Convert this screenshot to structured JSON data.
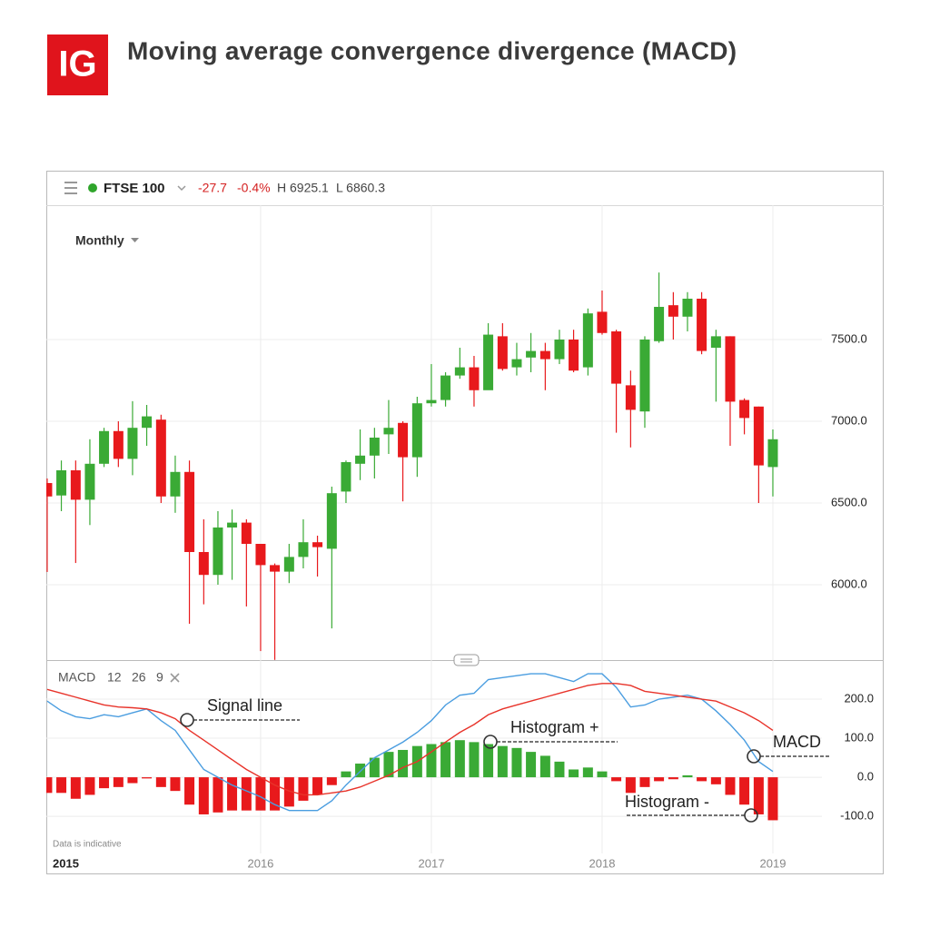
{
  "logo": "IG",
  "title": "Moving average convergence divergence (MACD)",
  "header": {
    "symbol": "FTSE 100",
    "change": "-27.7",
    "change_pct": "-0.4%",
    "high": "H 6925.1",
    "low": "L 6860.3"
  },
  "interval": "Monthly",
  "footnote": "Data is indicative",
  "chart_data": [
    {
      "type": "candlestick",
      "x": [
        2014.75,
        2014.833,
        2014.917,
        2015,
        2015.083,
        2015.167,
        2015.25,
        2015.333,
        2015.417,
        2015.5,
        2015.583,
        2015.667,
        2015.75,
        2015.833,
        2015.917,
        2016,
        2016.083,
        2016.167,
        2016.25,
        2016.333,
        2016.417,
        2016.5,
        2016.583,
        2016.667,
        2016.75,
        2016.833,
        2016.917,
        2017,
        2017.083,
        2017.167,
        2017.25,
        2017.333,
        2017.417,
        2017.5,
        2017.583,
        2017.667,
        2017.75,
        2017.833,
        2017.917,
        2018,
        2018.083,
        2018.167,
        2018.25,
        2018.333,
        2018.417,
        2018.5,
        2018.583,
        2018.667,
        2018.75,
        2018.833,
        2018.917,
        2019
      ],
      "open": [
        6622,
        6546,
        6700,
        6520,
        6740,
        6940,
        6770,
        6960,
        7010,
        6540,
        6690,
        6200,
        6060,
        6350,
        6380,
        6250,
        6120,
        6080,
        6170,
        6260,
        6220,
        6570,
        6740,
        6790,
        6920,
        6990,
        6780,
        7110,
        7130,
        7280,
        7330,
        7190,
        7520,
        7330,
        7390,
        7430,
        7380,
        7500,
        7330,
        7670,
        7550,
        7220,
        7060,
        7490,
        7710,
        7640,
        7750,
        7450,
        7520,
        7130,
        7090,
        6720
      ],
      "high": [
        6650,
        6760,
        6760,
        6890,
        6960,
        7000,
        7123,
        7100,
        7040,
        6790,
        6760,
        6400,
        6450,
        6460,
        6400,
        6250,
        6130,
        6250,
        6400,
        6300,
        6600,
        6760,
        6950,
        6960,
        7130,
        7000,
        7150,
        7350,
        7300,
        7450,
        7400,
        7600,
        7600,
        7480,
        7540,
        7480,
        7560,
        7560,
        7690,
        7800,
        7560,
        7310,
        7520,
        7910,
        7790,
        7790,
        7790,
        7560,
        7520,
        7140,
        7090,
        6950
      ],
      "low": [
        6078,
        6450,
        6133,
        6365,
        6720,
        6720,
        6670,
        6850,
        6500,
        6440,
        5761,
        5880,
        6000,
        6030,
        5867,
        5594,
        5540,
        6010,
        6100,
        6050,
        5733,
        6500,
        6640,
        6650,
        6800,
        6510,
        6660,
        7090,
        7090,
        7260,
        7090,
        7200,
        7310,
        7280,
        7300,
        7190,
        7350,
        7300,
        7280,
        7530,
        6930,
        6840,
        6960,
        7480,
        7500,
        7550,
        7410,
        7120,
        6850,
        6920,
        6500,
        6540
      ],
      "close": [
        6540,
        6700,
        6520,
        6740,
        6940,
        6770,
        6960,
        7030,
        6540,
        6690,
        6200,
        6060,
        6350,
        6380,
        6250,
        6120,
        6080,
        6170,
        6260,
        6230,
        6560,
        6750,
        6790,
        6900,
        6960,
        6780,
        7110,
        7130,
        7280,
        7330,
        7190,
        7530,
        7320,
        7380,
        7430,
        7380,
        7500,
        7310,
        7660,
        7540,
        7230,
        7070,
        7500,
        7700,
        7640,
        7750,
        7430,
        7520,
        7120,
        7020,
        6730,
        6890
      ],
      "up_color": "#3aaa35",
      "down_color": "#e8191c",
      "ylim": [
        5539,
        8322
      ],
      "yticks": [
        {
          "value": 6000,
          "label": "6000.0"
        },
        {
          "value": 6500,
          "label": "6500.0"
        },
        {
          "value": 7000,
          "label": "7000.0"
        },
        {
          "value": 7500,
          "label": "7500.0"
        }
      ],
      "xlim": [
        2014.745,
        2019.649
      ],
      "xticks": [
        2016,
        2017,
        2018,
        2019
      ],
      "x_start_label": "2015",
      "grid": true
    },
    {
      "type": "macd",
      "indicator": "MACD",
      "params": [
        12,
        26,
        9
      ],
      "x": [
        2014.75,
        2014.833,
        2014.917,
        2015,
        2015.083,
        2015.167,
        2015.25,
        2015.333,
        2015.417,
        2015.5,
        2015.583,
        2015.667,
        2015.75,
        2015.833,
        2015.917,
        2016,
        2016.083,
        2016.167,
        2016.25,
        2016.333,
        2016.417,
        2016.5,
        2016.583,
        2016.667,
        2016.75,
        2016.833,
        2016.917,
        2017,
        2017.083,
        2017.167,
        2017.25,
        2017.333,
        2017.417,
        2017.5,
        2017.583,
        2017.667,
        2017.75,
        2017.833,
        2017.917,
        2018,
        2018.083,
        2018.167,
        2018.25,
        2018.333,
        2018.417,
        2018.5,
        2018.583,
        2018.667,
        2018.75,
        2018.833,
        2018.917,
        2019
      ],
      "histogram": {
        "positive_color": "#3aaa35",
        "negative_color": "#e8191c",
        "values": [
          -40,
          -40,
          -55,
          -45,
          -28,
          -25,
          -15,
          -3,
          -25,
          -35,
          -70,
          -95,
          -90,
          -85,
          -85,
          -85,
          -85,
          -75,
          -60,
          -45,
          -20,
          15,
          35,
          50,
          65,
          70,
          80,
          85,
          90,
          95,
          90,
          85,
          80,
          75,
          65,
          55,
          40,
          20,
          25,
          15,
          -10,
          -40,
          -25,
          -10,
          -5,
          5,
          -10,
          -18,
          -45,
          -70,
          -95,
          -110
        ]
      },
      "series": [
        {
          "name": "MACD",
          "color": "#4a9de0",
          "values": [
            195,
            170,
            155,
            150,
            160,
            155,
            165,
            175,
            145,
            120,
            70,
            20,
            0,
            -20,
            -35,
            -50,
            -70,
            -85,
            -85,
            -85,
            -60,
            -20,
            15,
            50,
            70,
            90,
            115,
            145,
            185,
            210,
            215,
            250,
            255,
            260,
            265,
            265,
            255,
            245,
            265,
            265,
            230,
            180,
            185,
            200,
            205,
            210,
            200,
            170,
            135,
            95,
            40,
            15
          ]
        },
        {
          "name": "Signal line",
          "color": "#e8332a",
          "values": [
            225,
            215,
            205,
            195,
            185,
            180,
            178,
            175,
            165,
            150,
            120,
            95,
            70,
            45,
            20,
            0,
            -20,
            -35,
            -45,
            -45,
            -40,
            -35,
            -25,
            -10,
            5,
            25,
            40,
            65,
            90,
            115,
            135,
            160,
            175,
            185,
            195,
            205,
            215,
            225,
            235,
            240,
            240,
            235,
            220,
            215,
            210,
            205,
            200,
            195,
            180,
            165,
            145,
            120
          ]
        }
      ],
      "annotations": [
        "Signal line",
        "Histogram +",
        "MACD",
        "Histogram -"
      ],
      "ylim": [
        -195,
        300
      ],
      "yticks": [
        {
          "value": -100,
          "label": "-100.0"
        },
        {
          "value": 0,
          "label": "0.0"
        },
        {
          "value": 100,
          "label": "100.0"
        },
        {
          "value": 200,
          "label": "200.0"
        }
      ]
    }
  ]
}
